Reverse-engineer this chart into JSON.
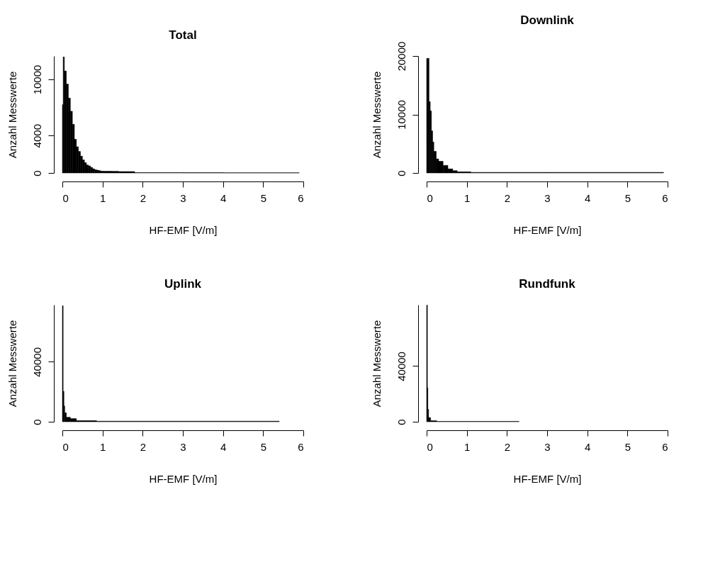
{
  "chart_data": [
    {
      "type": "histogram",
      "title": "Total",
      "xlabel": "HF-EMF [V/m]",
      "ylabel": "Anzahl Messwerte",
      "bins": [
        0,
        0.02,
        0.05,
        0.1,
        0.15,
        0.2,
        0.25,
        0.3,
        0.35,
        0.4,
        0.45,
        0.5,
        0.55,
        0.6,
        0.65,
        0.7,
        0.75,
        0.8,
        0.85,
        0.9,
        0.95,
        1.0,
        1.2,
        1.4,
        1.8,
        3,
        4,
        5,
        5.9
      ],
      "values": [
        7300,
        12400,
        10900,
        9500,
        8000,
        6600,
        5200,
        3600,
        2800,
        2300,
        1800,
        1400,
        1100,
        850,
        750,
        600,
        450,
        350,
        300,
        250,
        200,
        190,
        180,
        150,
        40,
        30,
        20,
        20
      ],
      "color": "#000000",
      "grid": false,
      "xlim": [
        0,
        6
      ],
      "xticks": [
        0,
        1,
        2,
        3,
        4,
        5,
        6
      ],
      "ylim": [
        0,
        12500
      ],
      "yticks": [
        0,
        4000,
        10000
      ]
    },
    {
      "type": "histogram",
      "title": "Downlink",
      "xlabel": "HF-EMF [V/m]",
      "ylabel": "Anzahl Messwerte",
      "bins": [
        0,
        0.06,
        0.09,
        0.12,
        0.15,
        0.18,
        0.24,
        0.3,
        0.41,
        0.53,
        0.65,
        0.76,
        1.1,
        3,
        5.9
      ],
      "values": [
        19600,
        12200,
        10600,
        7200,
        5300,
        3700,
        2400,
        2000,
        1300,
        700,
        400,
        200,
        100,
        100
      ],
      "color": "#000000",
      "grid": false,
      "xlim": [
        0,
        6
      ],
      "xticks": [
        0,
        1,
        2,
        3,
        4,
        5,
        6
      ],
      "ylim": [
        0,
        20000
      ],
      "yticks": [
        0,
        10000,
        20000
      ]
    },
    {
      "type": "histogram",
      "title": "Uplink",
      "xlabel": "HF-EMF [V/m]",
      "ylabel": "Anzahl Messwerte",
      "bins": [
        0,
        0.02,
        0.04,
        0.06,
        0.1,
        0.2,
        0.35,
        0.85,
        5.4
      ],
      "values": [
        77400,
        20300,
        10500,
        6000,
        3000,
        2100,
        800,
        400
      ],
      "color": "#000000",
      "grid": false,
      "xlim": [
        0,
        6
      ],
      "xticks": [
        0,
        1,
        2,
        3,
        4,
        5,
        6
      ],
      "ylim": [
        0,
        78000
      ],
      "yticks": [
        0,
        40000
      ]
    },
    {
      "type": "histogram",
      "title": "Rundfunk",
      "xlabel": "HF-EMF [V/m]",
      "ylabel": "Anzahl Messwerte",
      "bins": [
        0,
        0.02,
        0.03,
        0.05,
        0.1,
        0.25,
        2.3
      ],
      "values": [
        83700,
        24400,
        8900,
        3000,
        800,
        300
      ],
      "color": "#000000",
      "grid": false,
      "xlim": [
        0,
        6
      ],
      "xticks": [
        0,
        1,
        2,
        3,
        4,
        5,
        6
      ],
      "ylim": [
        0,
        84000
      ],
      "yticks": [
        0,
        40000
      ]
    }
  ]
}
